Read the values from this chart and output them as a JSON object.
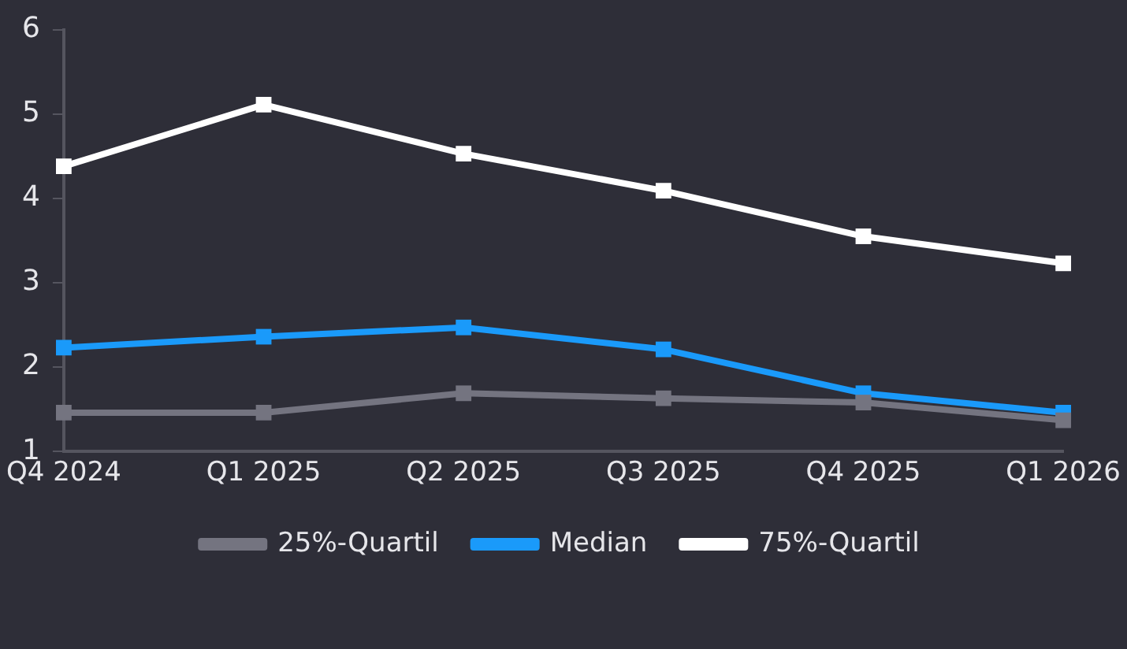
{
  "chart_data": {
    "type": "line",
    "categories": [
      "Q4 2024",
      "Q1 2025",
      "Q2 2025",
      "Q3 2025",
      "Q4 2025",
      "Q1 2026"
    ],
    "series": [
      {
        "name": "25%-Quartil",
        "color": "#747480",
        "values": [
          1.46,
          1.46,
          1.69,
          1.63,
          1.58,
          1.37
        ]
      },
      {
        "name": "Median",
        "color": "#1a9afa",
        "values": [
          2.23,
          2.36,
          2.47,
          2.21,
          1.69,
          1.46
        ]
      },
      {
        "name": "75%-Quartil",
        "color": "#ffffff",
        "values": [
          4.38,
          5.11,
          4.53,
          4.09,
          3.55,
          3.23
        ]
      }
    ],
    "ylim": [
      1,
      6
    ],
    "yticks": [
      1,
      2,
      3,
      4,
      5,
      6
    ],
    "grid": false,
    "legend": "bottom",
    "marker": "square",
    "line_style": "solid"
  }
}
